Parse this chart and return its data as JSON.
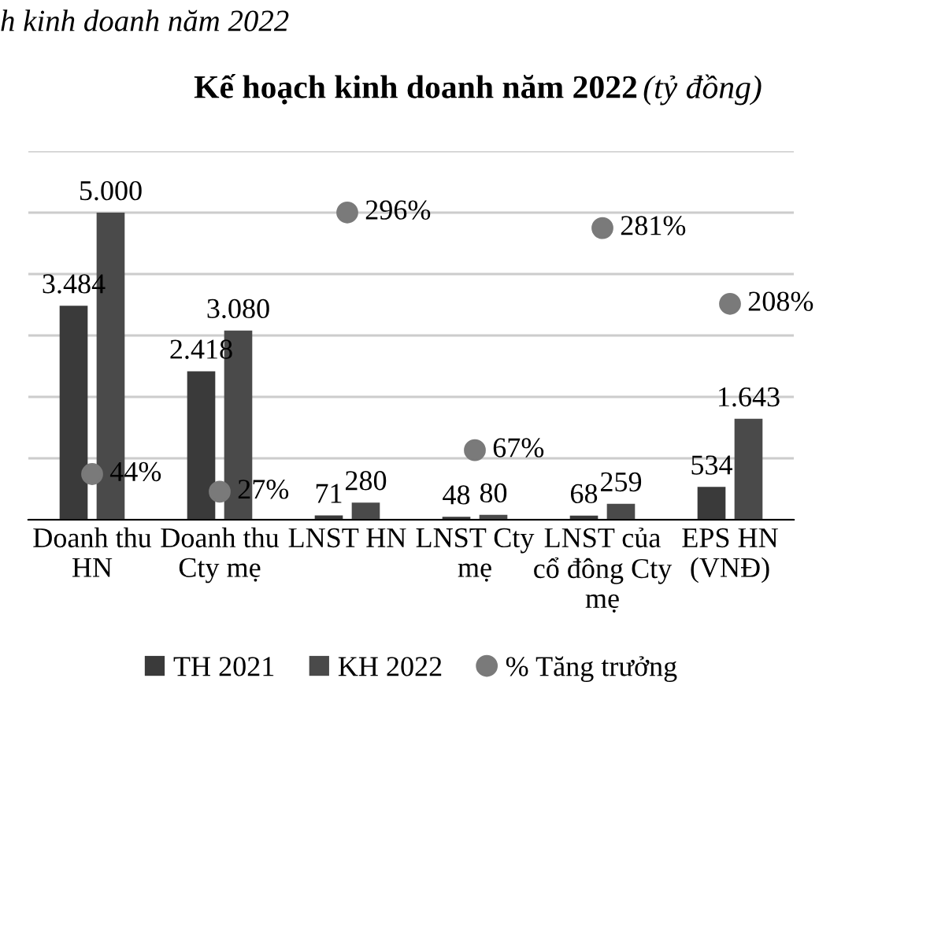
{
  "chart_data": {
    "type": "bar",
    "title": "Kế hoạch kinh doanh năm 2022",
    "subtitle": "(tỷ đồng)",
    "annotations": [
      "h kinh doanh năm 2022"
    ],
    "categories": [
      "Doanh thu\nHN",
      "Doanh thu\nCty mẹ",
      "LNST HN",
      "LNST Cty\nmẹ",
      "LNST của\ncổ đông Cty\nmẹ",
      "EPS HN\n(VNĐ)"
    ],
    "series": [
      {
        "name": "TH 2021",
        "color": "#3a3a3a",
        "values": [
          3484,
          2418,
          71,
          48,
          68,
          534
        ],
        "value_labels": [
          "3.484",
          "2.418",
          "71",
          "48",
          "68",
          "534"
        ]
      },
      {
        "name": "KH 2022",
        "color": "#4a4a4a",
        "values": [
          5000,
          3080,
          280,
          80,
          259,
          1643
        ],
        "value_labels": [
          "5.000",
          "3.080",
          "280",
          "80",
          "259",
          "1.643"
        ]
      },
      {
        "name": "% Tăng trưởng",
        "type": "scatter",
        "axis": "y2",
        "color": "#7a7a7a",
        "values": [
          44,
          27,
          296,
          67,
          281,
          208
        ],
        "value_labels": [
          "44%",
          "27%",
          "296%",
          "67%",
          "281%",
          "208%"
        ]
      }
    ],
    "ylim": [
      0,
      6000
    ],
    "yticks": [
      0,
      1000,
      2000,
      3000,
      4000,
      5000,
      6000
    ],
    "y2lim": [
      0,
      355
    ],
    "tick_labels": "x",
    "grid": "y",
    "legend": "bottom",
    "marker": "circle"
  }
}
